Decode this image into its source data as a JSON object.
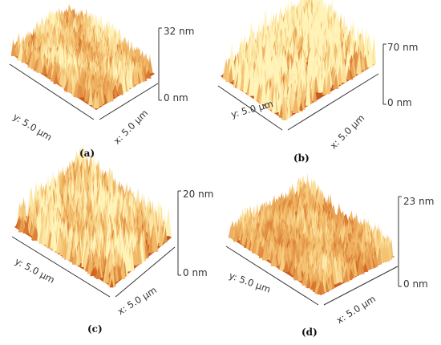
{
  "colors": {
    "dark": "#7a1a0a",
    "mid": "#d2641e",
    "light": "#f4c270",
    "peak": "#fff3b8",
    "frame": "#333333"
  },
  "panels": [
    {
      "id": "a",
      "letter": "(a)",
      "top_label": "32 nm",
      "bottom_label": "0 nm",
      "y_label": "y: 5.0 μm",
      "x_label": "x: 5.0 μm",
      "style": "uniform-spiky"
    },
    {
      "id": "b",
      "letter": "(b)",
      "top_label": "70 nm",
      "bottom_label": "0 nm",
      "y_label": "y: 5.0 μm",
      "x_label": "x: 5.0 μm",
      "style": "rough-hilly"
    },
    {
      "id": "c",
      "letter": "(c)",
      "top_label": "20 nm",
      "bottom_label": "0 nm",
      "y_label": "y: 5.0 μm",
      "x_label": "x: 5.0 μm",
      "style": "granular"
    },
    {
      "id": "d",
      "letter": "(d)",
      "top_label": "23 nm",
      "bottom_label": "0 nm",
      "y_label": "y: 5.0 μm",
      "x_label": "x: 5.0 μm",
      "style": "fine-dense"
    }
  ]
}
